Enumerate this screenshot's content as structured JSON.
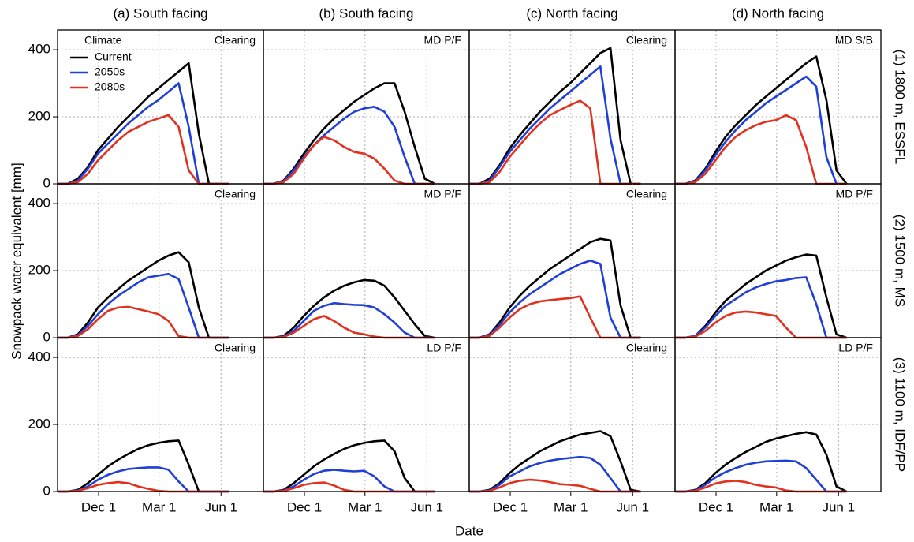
{
  "chart_data": {
    "type": "line",
    "ylabel": "Snowpack water equivalent [mm]",
    "xlabel": "Date",
    "columns": [
      "(a) South facing",
      "(b) South facing",
      "(c) North facing",
      "(d) North facing"
    ],
    "rows": [
      "(1) 1800 m, ESSFL",
      "(2) 1500 m, MS",
      "(3) 1100 m, IDF/PP"
    ],
    "legend": {
      "title": "Climate",
      "position": "upper left"
    },
    "series": [
      {
        "name": "Current",
        "color": "#000000"
      },
      {
        "name": "2050s",
        "color": "#1f3fd6"
      },
      {
        "name": "2080s",
        "color": "#e0321e"
      }
    ],
    "x": [
      0,
      15,
      30,
      45,
      60,
      75,
      90,
      105,
      120,
      135,
      150,
      165,
      180,
      195,
      210,
      225,
      240,
      255
    ],
    "xlim": [
      0,
      306
    ],
    "xticks": [
      {
        "value": 61,
        "label": "Dec 1"
      },
      {
        "value": 151,
        "label": "Mar 1"
      },
      {
        "value": 243,
        "label": "Jun 1"
      }
    ],
    "ylim": [
      0,
      459
    ],
    "yticks": [
      0,
      200,
      400
    ],
    "grid": true,
    "panels": [
      {
        "label": "Clearing",
        "values": [
          [
            0,
            0,
            15,
            50,
            100,
            135,
            170,
            200,
            230,
            260,
            285,
            310,
            335,
            360,
            150,
            0,
            0,
            0
          ],
          [
            0,
            0,
            10,
            45,
            90,
            120,
            150,
            180,
            205,
            230,
            250,
            275,
            300,
            170,
            0,
            0,
            0,
            0
          ],
          [
            0,
            0,
            5,
            30,
            70,
            100,
            130,
            155,
            170,
            185,
            195,
            205,
            170,
            40,
            0,
            0,
            0,
            0
          ]
        ]
      },
      {
        "label": "MD P/F",
        "values": [
          [
            0,
            0,
            10,
            45,
            90,
            130,
            165,
            195,
            220,
            245,
            265,
            285,
            300,
            300,
            215,
            110,
            15,
            0
          ],
          [
            0,
            0,
            8,
            40,
            80,
            115,
            145,
            170,
            195,
            215,
            225,
            230,
            215,
            170,
            80,
            0,
            0,
            0
          ],
          [
            0,
            0,
            5,
            30,
            75,
            115,
            140,
            130,
            110,
            95,
            90,
            75,
            45,
            10,
            0,
            0,
            0,
            0
          ]
        ]
      },
      {
        "label": "Clearing",
        "values": [
          [
            0,
            0,
            15,
            55,
            105,
            145,
            180,
            215,
            245,
            275,
            300,
            330,
            360,
            390,
            405,
            130,
            0,
            0
          ],
          [
            0,
            0,
            10,
            50,
            95,
            130,
            165,
            195,
            225,
            250,
            275,
            300,
            325,
            350,
            135,
            0,
            0,
            0
          ],
          [
            0,
            0,
            5,
            35,
            80,
            115,
            150,
            180,
            205,
            220,
            235,
            248,
            225,
            0,
            0,
            0,
            0,
            0
          ]
        ]
      },
      {
        "label": "MD S/B",
        "values": [
          [
            0,
            0,
            10,
            45,
            95,
            140,
            175,
            205,
            235,
            260,
            285,
            310,
            335,
            360,
            380,
            250,
            40,
            0
          ],
          [
            0,
            0,
            8,
            40,
            85,
            125,
            160,
            190,
            215,
            240,
            260,
            280,
            300,
            320,
            290,
            80,
            0,
            0
          ],
          [
            0,
            0,
            5,
            30,
            70,
            110,
            140,
            160,
            175,
            185,
            190,
            205,
            190,
            110,
            0,
            0,
            0,
            0
          ]
        ]
      },
      {
        "label": "Clearing",
        "values": [
          [
            0,
            0,
            10,
            45,
            90,
            120,
            145,
            170,
            190,
            210,
            230,
            245,
            255,
            225,
            90,
            0,
            0,
            0
          ],
          [
            0,
            0,
            8,
            35,
            70,
            100,
            125,
            145,
            165,
            180,
            185,
            190,
            175,
            90,
            0,
            0,
            0,
            0
          ],
          [
            0,
            0,
            5,
            25,
            55,
            80,
            90,
            92,
            85,
            78,
            70,
            50,
            5,
            0,
            0,
            0,
            0,
            0
          ]
        ]
      },
      {
        "label": "MD P/F",
        "values": [
          [
            0,
            0,
            5,
            30,
            65,
            95,
            120,
            140,
            155,
            165,
            172,
            170,
            155,
            120,
            80,
            40,
            5,
            0
          ],
          [
            0,
            0,
            3,
            20,
            50,
            80,
            95,
            103,
            100,
            98,
            97,
            90,
            70,
            45,
            15,
            0,
            0,
            0
          ],
          [
            0,
            0,
            2,
            15,
            35,
            55,
            65,
            50,
            30,
            15,
            10,
            3,
            0,
            0,
            0,
            0,
            0,
            0
          ]
        ]
      },
      {
        "label": "Clearing",
        "values": [
          [
            0,
            0,
            10,
            45,
            90,
            125,
            155,
            180,
            205,
            225,
            245,
            265,
            285,
            295,
            290,
            96,
            0,
            0
          ],
          [
            0,
            0,
            8,
            38,
            75,
            105,
            130,
            150,
            170,
            190,
            205,
            220,
            230,
            220,
            60,
            0,
            0,
            0
          ],
          [
            0,
            0,
            5,
            30,
            60,
            85,
            100,
            108,
            112,
            115,
            118,
            123,
            60,
            0,
            0,
            0,
            0,
            0
          ]
        ]
      },
      {
        "label": "MD P/F",
        "values": [
          [
            0,
            0,
            5,
            35,
            75,
            110,
            135,
            160,
            180,
            200,
            215,
            230,
            240,
            248,
            245,
            120,
            10,
            0
          ],
          [
            0,
            0,
            5,
            30,
            65,
            95,
            115,
            135,
            150,
            160,
            168,
            172,
            178,
            180,
            100,
            0,
            0,
            0
          ],
          [
            0,
            0,
            3,
            20,
            45,
            65,
            75,
            78,
            75,
            70,
            65,
            30,
            0,
            0,
            0,
            0,
            0,
            0
          ]
        ]
      },
      {
        "label": "Clearing",
        "values": [
          [
            0,
            0,
            5,
            25,
            50,
            75,
            95,
            112,
            127,
            138,
            145,
            150,
            152,
            80,
            0,
            0,
            0,
            0
          ],
          [
            0,
            0,
            3,
            15,
            35,
            50,
            60,
            67,
            70,
            72,
            72,
            65,
            30,
            0,
            0,
            0,
            0,
            0
          ],
          [
            0,
            0,
            2,
            10,
            20,
            25,
            28,
            25,
            15,
            8,
            2,
            0,
            0,
            0,
            0,
            0,
            0,
            0
          ]
        ]
      },
      {
        "label": "LD P/F",
        "values": [
          [
            0,
            0,
            5,
            25,
            50,
            75,
            95,
            112,
            127,
            138,
            145,
            150,
            152,
            120,
            40,
            0,
            0,
            0
          ],
          [
            0,
            0,
            3,
            15,
            35,
            52,
            62,
            65,
            62,
            60,
            62,
            45,
            15,
            0,
            0,
            0,
            0,
            0
          ],
          [
            0,
            0,
            2,
            10,
            20,
            25,
            27,
            18,
            5,
            0,
            0,
            0,
            0,
            0,
            0,
            0,
            0,
            0
          ]
        ]
      },
      {
        "label": "Clearing",
        "values": [
          [
            0,
            0,
            5,
            25,
            55,
            80,
            100,
            120,
            135,
            150,
            160,
            170,
            175,
            180,
            165,
            90,
            5,
            0
          ],
          [
            0,
            0,
            3,
            20,
            45,
            60,
            75,
            85,
            92,
            97,
            100,
            103,
            100,
            80,
            40,
            0,
            0,
            0
          ],
          [
            0,
            0,
            2,
            12,
            25,
            32,
            35,
            33,
            28,
            22,
            20,
            17,
            8,
            0,
            0,
            0,
            0,
            0
          ]
        ]
      },
      {
        "label": "LD P/F",
        "values": [
          [
            0,
            0,
            5,
            25,
            55,
            80,
            100,
            118,
            133,
            148,
            158,
            165,
            172,
            177,
            170,
            110,
            15,
            0
          ],
          [
            0,
            0,
            3,
            20,
            42,
            58,
            70,
            80,
            86,
            90,
            91,
            92,
            90,
            70,
            35,
            0,
            0,
            0
          ],
          [
            0,
            0,
            2,
            12,
            24,
            30,
            32,
            28,
            20,
            15,
            12,
            3,
            0,
            0,
            0,
            0,
            0,
            0
          ]
        ]
      }
    ]
  }
}
